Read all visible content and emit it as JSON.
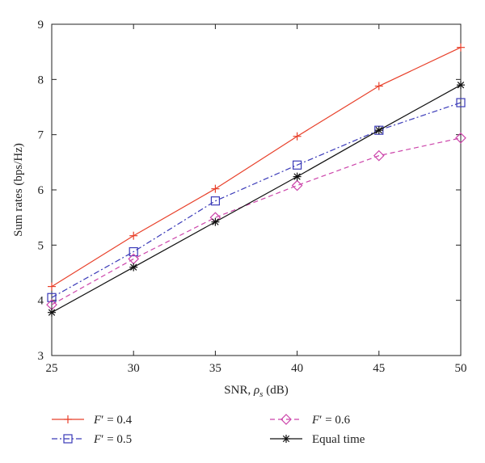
{
  "chart_data": {
    "type": "line",
    "xlabel": "SNR, ρs (dB)",
    "xlabel_main": "SNR, ",
    "xlabel_rho": "ρ",
    "xlabel_sub": "s",
    "xlabel_unit": " (dB)",
    "ylabel": "Sum rates (bps/Hz)",
    "xlim": [
      25,
      50
    ],
    "ylim": [
      3,
      9
    ],
    "xticks": [
      25,
      30,
      35,
      40,
      45,
      50
    ],
    "yticks": [
      3,
      4,
      5,
      6,
      7,
      8,
      9
    ],
    "grid": false,
    "legend_placement": "bottom",
    "x": [
      25,
      30,
      35,
      40,
      45,
      50
    ],
    "series": [
      {
        "name": "F′ = 0.4",
        "name_var": "F",
        "name_prime": "′",
        "name_rest": " = 0.4",
        "values": [
          4.25,
          5.17,
          6.02,
          6.97,
          7.88,
          8.58
        ],
        "color": "#e8402a",
        "marker": "plus",
        "dash": "solid"
      },
      {
        "name": "F′ = 0.5",
        "name_var": "F",
        "name_prime": "′",
        "name_rest": " = 0.5",
        "values": [
          4.05,
          4.88,
          5.8,
          6.45,
          7.08,
          7.58
        ],
        "color": "#3a3ab8",
        "marker": "square",
        "dash": "dashdot"
      },
      {
        "name": "F′ = 0.6",
        "name_var": "F",
        "name_prime": "′",
        "name_rest": " = 0.6",
        "values": [
          3.92,
          4.75,
          5.5,
          6.08,
          6.62,
          6.94
        ],
        "color": "#cc44aa",
        "marker": "diamond",
        "dash": "dashed"
      },
      {
        "name": "Equal time",
        "name_var": "",
        "name_prime": "",
        "name_rest": "Equal time",
        "values": [
          3.78,
          4.6,
          5.42,
          6.24,
          7.08,
          7.9
        ],
        "color": "#111111",
        "marker": "asterisk",
        "dash": "solid"
      }
    ]
  }
}
